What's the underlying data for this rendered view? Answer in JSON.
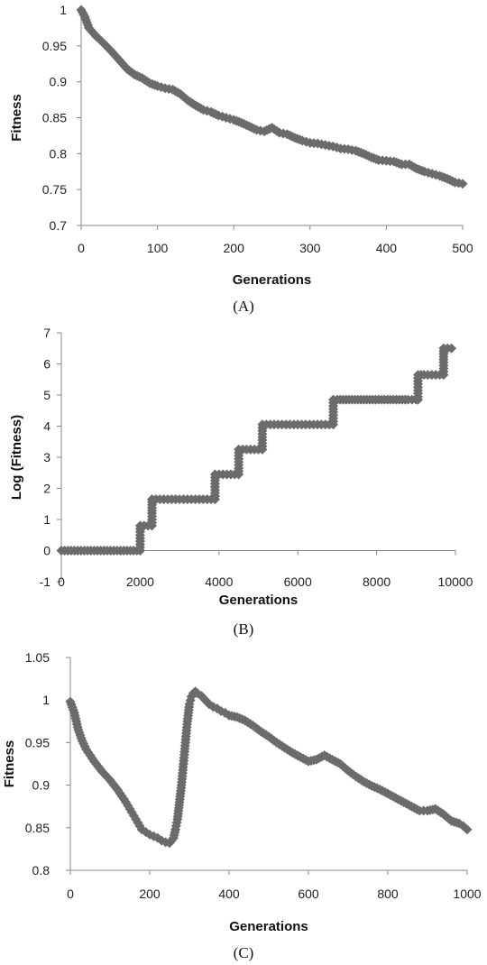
{
  "chart_data": [
    {
      "type": "scatter",
      "caption": "(A)",
      "xlabel": "Generations",
      "ylabel": "Fitness",
      "xlim": [
        0,
        500
      ],
      "ylim": [
        0.7,
        1
      ],
      "xticks": [
        "0",
        "100",
        "200",
        "300",
        "400",
        "500"
      ],
      "yticks": [
        "0.7",
        "0.75",
        "0.8",
        "0.85",
        "0.9",
        "0.95",
        "1"
      ],
      "grid": false,
      "legend": "none",
      "marker_color": "#6b6b6b",
      "series": [
        {
          "x": [
            0,
            5,
            10,
            20,
            30,
            40,
            50,
            60,
            70,
            80,
            90,
            100,
            110,
            120,
            130,
            140,
            150,
            160,
            170,
            180,
            190,
            200,
            210,
            220,
            230,
            240,
            250,
            260,
            270,
            280,
            290,
            300,
            310,
            320,
            330,
            340,
            350,
            360,
            370,
            380,
            390,
            400,
            410,
            420,
            430,
            440,
            450,
            460,
            470,
            480,
            490,
            500
          ],
          "y": [
            1.0,
            0.99,
            0.975,
            0.963,
            0.953,
            0.942,
            0.93,
            0.918,
            0.91,
            0.905,
            0.898,
            0.894,
            0.891,
            0.889,
            0.883,
            0.874,
            0.867,
            0.861,
            0.858,
            0.853,
            0.85,
            0.847,
            0.843,
            0.838,
            0.833,
            0.831,
            0.836,
            0.829,
            0.827,
            0.822,
            0.818,
            0.815,
            0.814,
            0.812,
            0.81,
            0.807,
            0.806,
            0.804,
            0.8,
            0.795,
            0.791,
            0.79,
            0.789,
            0.785,
            0.785,
            0.779,
            0.775,
            0.772,
            0.769,
            0.765,
            0.76,
            0.758
          ]
        }
      ]
    },
    {
      "type": "scatter",
      "caption": "(B)",
      "xlabel": "Generations",
      "ylabel": "Log (Fitness)",
      "xlim": [
        0,
        10000
      ],
      "ylim": [
        -1,
        7
      ],
      "xticks": [
        "0",
        "2000",
        "4000",
        "6000",
        "8000",
        "10000"
      ],
      "yticks": [
        "-1",
        "0",
        "1",
        "2",
        "3",
        "4",
        "5",
        "6",
        "7"
      ],
      "grid": false,
      "legend": "none",
      "marker_color": "#6b6b6b",
      "series": [
        {
          "x": [
            0,
            250,
            500,
            750,
            1000,
            1250,
            1500,
            1750,
            2000,
            2000,
            2000,
            2100,
            2200,
            2300,
            2300,
            2300,
            2400,
            2600,
            2800,
            3000,
            3200,
            3400,
            3600,
            3800,
            3900,
            3900,
            3900,
            4000,
            4200,
            4400,
            4500,
            4500,
            4500,
            4600,
            4800,
            5000,
            5100,
            5100,
            5100,
            5300,
            5500,
            5700,
            5900,
            6100,
            6300,
            6500,
            6700,
            6900,
            6900,
            6900,
            7000,
            7300,
            7600,
            7900,
            8200,
            8500,
            8800,
            9000,
            9050,
            9050,
            9050,
            9200,
            9400,
            9600,
            9700,
            9700,
            9700,
            9800,
            9900
          ],
          "y": [
            0,
            0,
            0,
            0,
            0,
            0,
            0,
            0,
            0,
            0.4,
            0.8,
            0.8,
            0.8,
            0.8,
            1.2,
            1.65,
            1.65,
            1.65,
            1.65,
            1.65,
            1.65,
            1.65,
            1.65,
            1.65,
            1.65,
            2.05,
            2.45,
            2.45,
            2.45,
            2.45,
            2.45,
            2.85,
            3.25,
            3.25,
            3.25,
            3.25,
            3.25,
            3.65,
            4.05,
            4.05,
            4.05,
            4.05,
            4.05,
            4.05,
            4.05,
            4.05,
            4.05,
            4.05,
            4.45,
            4.85,
            4.85,
            4.85,
            4.85,
            4.85,
            4.85,
            4.85,
            4.85,
            4.85,
            4.85,
            5.25,
            5.65,
            5.65,
            5.65,
            5.65,
            5.65,
            6.05,
            6.5,
            6.5,
            6.5
          ]
        }
      ]
    },
    {
      "type": "scatter",
      "caption": "(C)",
      "xlabel": "Generations",
      "ylabel": "Fitness",
      "xlim": [
        0,
        1000
      ],
      "ylim": [
        0.8,
        1.05
      ],
      "xticks": [
        "0",
        "200",
        "400",
        "600",
        "800",
        "1000"
      ],
      "yticks": [
        "0.8",
        "0.85",
        "0.9",
        "0.95",
        "1",
        "1.05"
      ],
      "grid": false,
      "legend": "none",
      "marker_color": "#6b6b6b",
      "series": [
        {
          "x": [
            0,
            10,
            20,
            30,
            40,
            50,
            60,
            70,
            80,
            90,
            100,
            110,
            120,
            130,
            140,
            150,
            160,
            170,
            180,
            190,
            200,
            210,
            220,
            230,
            240,
            250,
            260,
            265,
            270,
            275,
            280,
            285,
            290,
            295,
            300,
            305,
            310,
            315,
            320,
            330,
            340,
            350,
            360,
            370,
            380,
            390,
            400,
            420,
            440,
            460,
            480,
            500,
            520,
            540,
            560,
            580,
            600,
            620,
            640,
            660,
            680,
            700,
            720,
            740,
            760,
            780,
            800,
            820,
            840,
            860,
            880,
            900,
            920,
            940,
            960,
            980,
            990,
            1000
          ],
          "y": [
            0.998,
            0.985,
            0.965,
            0.952,
            0.942,
            0.935,
            0.928,
            0.922,
            0.916,
            0.911,
            0.906,
            0.9,
            0.894,
            0.887,
            0.88,
            0.872,
            0.864,
            0.856,
            0.848,
            0.845,
            0.842,
            0.84,
            0.838,
            0.835,
            0.833,
            0.832,
            0.838,
            0.848,
            0.86,
            0.88,
            0.9,
            0.925,
            0.95,
            0.975,
            0.995,
            1.004,
            1.008,
            1.01,
            1.008,
            1.005,
            1.0,
            0.995,
            0.992,
            0.99,
            0.987,
            0.985,
            0.982,
            0.98,
            0.976,
            0.97,
            0.963,
            0.957,
            0.95,
            0.944,
            0.938,
            0.933,
            0.928,
            0.93,
            0.935,
            0.93,
            0.925,
            0.917,
            0.91,
            0.904,
            0.899,
            0.895,
            0.89,
            0.885,
            0.88,
            0.875,
            0.87,
            0.87,
            0.872,
            0.866,
            0.858,
            0.855,
            0.852,
            0.848
          ]
        }
      ]
    }
  ]
}
